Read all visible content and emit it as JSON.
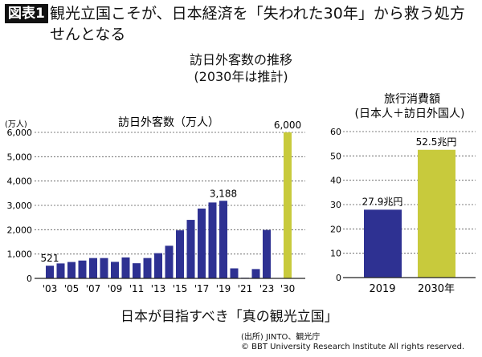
{
  "header": {
    "badge": "図表1",
    "title": "観光立国こそが、日本経済を「失われた30年」から救う処方せんとなる"
  },
  "subtitle_line1": "訪日外客数の推移",
  "subtitle_line2": "(2030年は推計)",
  "colors": {
    "actual": "#2e3192",
    "estimate": "#c8ca3c"
  },
  "chart_data": [
    {
      "type": "bar",
      "title": "訪日外客数（万人）",
      "ylabel": "(万人)",
      "ylim": [
        0,
        6000
      ],
      "yticks": [
        0,
        1000,
        2000,
        3000,
        4000,
        5000,
        6000
      ],
      "ytick_labels": [
        "0",
        "1,000",
        "2,000",
        "3,000",
        "4,000",
        "5,000",
        "6,000"
      ],
      "grid": "dashed horizontal",
      "categories": [
        "2003",
        "2004",
        "2005",
        "2006",
        "2007",
        "2008",
        "2009",
        "2010",
        "2011",
        "2012",
        "2013",
        "2014",
        "2015",
        "2016",
        "2017",
        "2018",
        "2019",
        "2020",
        "2021",
        "2022",
        "2023",
        "2030"
      ],
      "values": [
        521,
        614,
        673,
        733,
        835,
        835,
        679,
        861,
        622,
        836,
        1036,
        1341,
        1974,
        2404,
        2869,
        3119,
        3188,
        412,
        25,
        383,
        1990,
        6000
      ],
      "estimate": [
        false,
        false,
        false,
        false,
        false,
        false,
        false,
        false,
        false,
        false,
        false,
        false,
        false,
        false,
        false,
        false,
        false,
        false,
        false,
        false,
        false,
        true
      ],
      "xtick_labels": [
        "'03",
        "'05",
        "'07",
        "'09",
        "'11",
        "'13",
        "'15",
        "'17",
        "'19",
        "'21",
        "'23",
        "'30"
      ],
      "xtick_years": [
        "2003",
        "2005",
        "2007",
        "2009",
        "2011",
        "2013",
        "2015",
        "2017",
        "2019",
        "2021",
        "2023",
        "2030"
      ],
      "data_labels": [
        {
          "category": "2003",
          "text": "521"
        },
        {
          "category": "2019",
          "text": "3,188"
        },
        {
          "category": "2030",
          "text": "6,000"
        }
      ]
    },
    {
      "type": "bar",
      "title": "旅行消費額",
      "subtitle": "(日本人＋訪日外国人)",
      "ylim": [
        0,
        60
      ],
      "yticks": [
        0,
        10,
        20,
        30,
        40,
        50,
        60
      ],
      "ytick_labels": [
        "0",
        "10",
        "20",
        "30",
        "40",
        "50",
        "60"
      ],
      "grid": "dashed horizontal",
      "categories": [
        "2019",
        "2030年"
      ],
      "values": [
        27.9,
        52.5
      ],
      "estimate": [
        false,
        true
      ],
      "data_labels": [
        "27.9兆円",
        "52.5兆円"
      ]
    }
  ],
  "footer": {
    "main": "日本が目指すべき「真の観光立国」",
    "source": "(出所) JINTO、観光庁",
    "copyright": "© BBT University Research Institute All rights reserved."
  }
}
